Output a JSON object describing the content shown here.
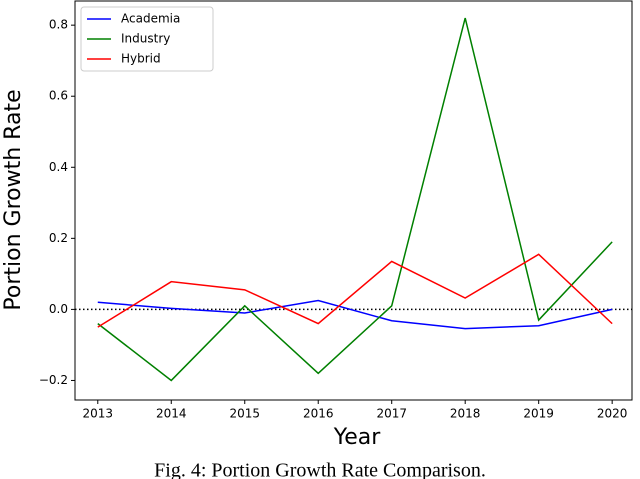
{
  "chart_data": {
    "type": "line",
    "x_label": "Year",
    "y_label": "Portion Growth Rate",
    "caption": "Fig. 4: Portion Growth Rate Comparison.",
    "x": [
      2013,
      2014,
      2015,
      2016,
      2017,
      2018,
      2019,
      2020
    ],
    "series": [
      {
        "name": "Academia",
        "color": "#0000ff",
        "values": [
          0.02,
          0.003,
          -0.01,
          0.025,
          -0.032,
          -0.054,
          -0.046,
          0.0
        ]
      },
      {
        "name": "Industry",
        "color": "#008000",
        "values": [
          -0.04,
          -0.2,
          0.01,
          -0.18,
          0.01,
          0.82,
          -0.03,
          0.19
        ]
      },
      {
        "name": "Hybrid",
        "color": "#ff0000",
        "values": [
          -0.05,
          0.078,
          0.055,
          -0.04,
          0.135,
          0.032,
          0.155,
          -0.04
        ]
      }
    ],
    "xlim": [
      2012.69,
      2020.27
    ],
    "xticks": [
      2013,
      2014,
      2015,
      2016,
      2017,
      2018,
      2019,
      2020
    ],
    "ylim": [
      -0.255,
      0.868
    ],
    "yticks": [
      {
        "value": -0.2,
        "label": "−0.2"
      },
      {
        "value": 0,
        "label": "0.0"
      },
      {
        "value": 0.2,
        "label": "0.2"
      },
      {
        "value": 0.4,
        "label": "0.4"
      },
      {
        "value": 0.6,
        "label": "0.6"
      },
      {
        "value": 0.8,
        "label": "0.8"
      }
    ],
    "reference_line": 0,
    "legend": "upper left"
  }
}
